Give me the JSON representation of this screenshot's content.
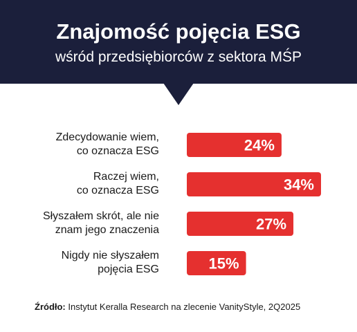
{
  "header": {
    "title": "Znajomość pojęcia ESG",
    "subtitle": "wśród przedsiębiorców z sektora MŚP"
  },
  "colors": {
    "banner": "#1b1f3b",
    "bar": "#e5302f"
  },
  "chart_data": {
    "type": "bar",
    "orientation": "horizontal",
    "categories": [
      [
        "Zdecydowanie wiem,",
        "co oznacza ESG"
      ],
      [
        "Raczej wiem,",
        "co oznacza ESG"
      ],
      [
        "Słyszałem skrót, ale nie",
        "znam jego znaczenia"
      ],
      [
        "Nigdy nie słyszałem",
        "pojęcia ESG"
      ]
    ],
    "values": [
      24,
      34,
      27,
      15
    ],
    "value_labels": [
      "24%",
      "34%",
      "27%",
      "15%"
    ],
    "unit": "%",
    "xlim": [
      0,
      34
    ],
    "grid": false,
    "legend": "none"
  },
  "source": {
    "label": "Źródło:",
    "text": "Instytut Keralla Research na zlecenie VanityStyle, 2Q2025"
  }
}
